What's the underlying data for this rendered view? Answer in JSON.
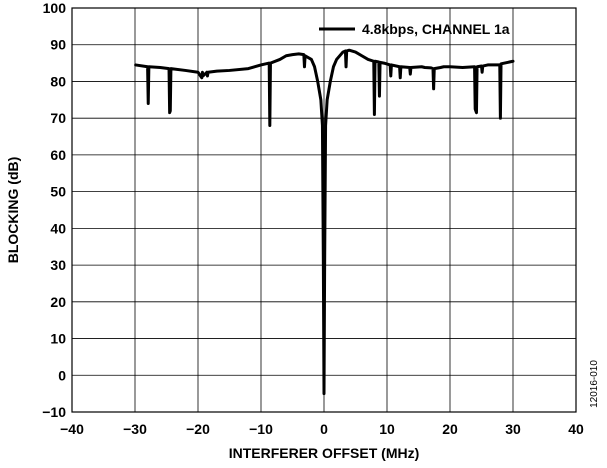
{
  "chart_data": {
    "type": "line",
    "xlabel": "INTERFERER OFFSET (MHz)",
    "ylabel": "BLOCKING (dB)",
    "xlim": [
      -40,
      40
    ],
    "ylim": [
      -10,
      100
    ],
    "x_ticks": [
      -40,
      -30,
      -20,
      -10,
      0,
      10,
      20,
      30,
      40
    ],
    "y_ticks": [
      -10,
      0,
      10,
      20,
      30,
      40,
      50,
      60,
      70,
      80,
      90,
      100
    ],
    "x_tick_labels": [
      "−40",
      "−30",
      "−20",
      "−10",
      "0",
      "10",
      "20",
      "30",
      "40"
    ],
    "y_tick_labels": [
      "−10",
      "0",
      "10",
      "20",
      "30",
      "40",
      "50",
      "60",
      "70",
      "80",
      "90",
      "100"
    ],
    "grid": true,
    "legend_position": "top-right",
    "figure_id": "12016-010",
    "line_color": "#000000",
    "series": [
      {
        "name": "4.8kbps, CHANNEL 1a",
        "x": [
          -29.9,
          -28.0,
          -27.9,
          -27.8,
          -26.0,
          -24.6,
          -24.5,
          -24.4,
          -24.3,
          -22.0,
          -20.0,
          -19.4,
          -19.3,
          -19.2,
          -18.6,
          -18.5,
          -18.4,
          -17.0,
          -15.0,
          -12.0,
          -10.0,
          -8.7,
          -8.6,
          -8.5,
          -7.0,
          -6.0,
          -5.0,
          -4.0,
          -3.2,
          -3.1,
          -3.0,
          -2.0,
          -1.5,
          -1.0,
          -0.5,
          -0.25,
          -0.1,
          0.0,
          0.1,
          0.25,
          0.5,
          1.0,
          1.5,
          2.0,
          3.0,
          3.4,
          3.5,
          3.6,
          4.0,
          5.0,
          6.0,
          7.0,
          7.9,
          8.0,
          8.1,
          8.7,
          8.8,
          8.9,
          9.5,
          10.5,
          10.6,
          10.7,
          12.0,
          12.1,
          12.2,
          13.6,
          13.7,
          13.8,
          15.5,
          16.0,
          17.0,
          17.3,
          17.4,
          17.5,
          18.5,
          19.0,
          20.0,
          22.0,
          23.9,
          24.0,
          24.1,
          24.2,
          24.3,
          25.0,
          25.1,
          25.2,
          26.0,
          27.9,
          28.0,
          28.1,
          30.0
        ],
        "y": [
          84.5,
          84.0,
          74.0,
          84.0,
          83.8,
          83.5,
          71.5,
          72.0,
          83.5,
          83.0,
          82.5,
          81.0,
          82.5,
          81.5,
          82.5,
          81.5,
          82.5,
          82.8,
          83.0,
          83.5,
          84.5,
          85.0,
          68.0,
          85.0,
          86.0,
          87.0,
          87.3,
          87.5,
          87.3,
          84.0,
          87.0,
          86.0,
          84.0,
          80.0,
          75.0,
          68.0,
          30.0,
          -5.0,
          30.0,
          68.0,
          75.0,
          80.0,
          84.0,
          86.0,
          88.0,
          88.3,
          84.0,
          88.3,
          88.5,
          88.0,
          87.0,
          86.0,
          85.5,
          71.0,
          85.5,
          85.3,
          76.0,
          85.2,
          85.0,
          84.5,
          81.5,
          84.5,
          84.0,
          81.0,
          84.0,
          83.8,
          82.0,
          83.8,
          84.0,
          83.8,
          83.7,
          83.5,
          78.0,
          83.5,
          83.8,
          84.0,
          84.0,
          83.8,
          84.0,
          72.5,
          72.0,
          71.5,
          84.0,
          84.2,
          82.5,
          84.2,
          84.5,
          84.5,
          70.0,
          84.8,
          85.5
        ]
      }
    ]
  }
}
